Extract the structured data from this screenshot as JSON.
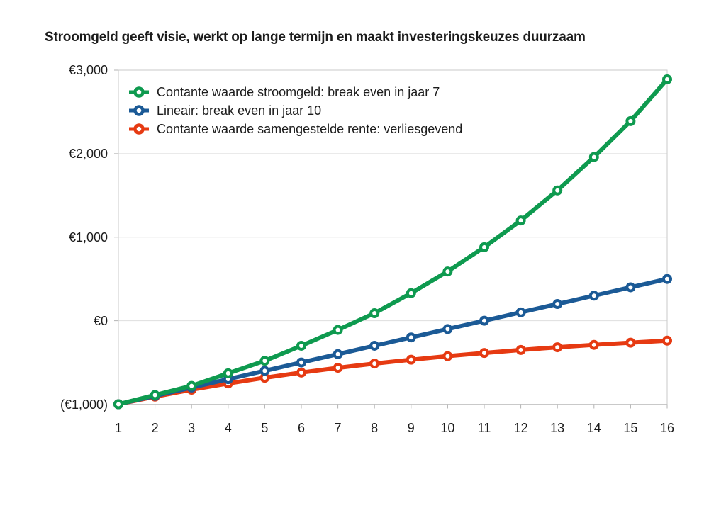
{
  "page": {
    "background": "#ffffff",
    "title": "Stroomgeld geeft visie, werkt op lange termijn en maakt investeringskeuzes duurzaam"
  },
  "chart_data": {
    "type": "line",
    "title": "Stroomgeld geeft visie, werkt op lange termijn en maakt investeringskeuzes duurzaam",
    "x": [
      1,
      2,
      3,
      4,
      5,
      6,
      7,
      8,
      9,
      10,
      11,
      12,
      13,
      14,
      15,
      16
    ],
    "xlabel": "",
    "ylabel": "",
    "ylim": [
      -1000,
      3000
    ],
    "y_ticks": [
      {
        "label": "€3,000",
        "value": 3000
      },
      {
        "label": "€2,000",
        "value": 2000
      },
      {
        "label": "€1,000",
        "value": 1000
      },
      {
        "label": "€0",
        "value": 0
      },
      {
        "label": "(€1,000)",
        "value": -1000
      }
    ],
    "grid": "horizontal-only",
    "legend_position": "top-left-inside",
    "marker": "open-circle",
    "colors": {
      "gridline": "#dedede",
      "plot_border": "#c9c9c9",
      "tick": "#b3b3b3",
      "text": "#1c1c1c"
    },
    "series": [
      {
        "name": "Contante waarde stroomgeld: break even in jaar 7",
        "color": "#0e9a4f",
        "values": [
          -1000,
          -890,
          -780,
          -630,
          -480,
          -300,
          -110,
          90,
          330,
          590,
          880,
          1200,
          1560,
          1960,
          2390,
          2890
        ]
      },
      {
        "name": "Lineair: break even in jaar 10",
        "color": "#1b5a96",
        "values": [
          -1000,
          -900,
          -800,
          -700,
          -600,
          -500,
          -400,
          -300,
          -200,
          -100,
          0,
          100,
          200,
          300,
          400,
          500
        ]
      },
      {
        "name": "Contante waarde samengestelde rente: verliesgevend",
        "color": "#e63a12",
        "values": [
          -1000,
          -909,
          -826,
          -751,
          -683,
          -621,
          -564,
          -513,
          -467,
          -424,
          -386,
          -350,
          -318,
          -289,
          -263,
          -239
        ]
      }
    ]
  }
}
